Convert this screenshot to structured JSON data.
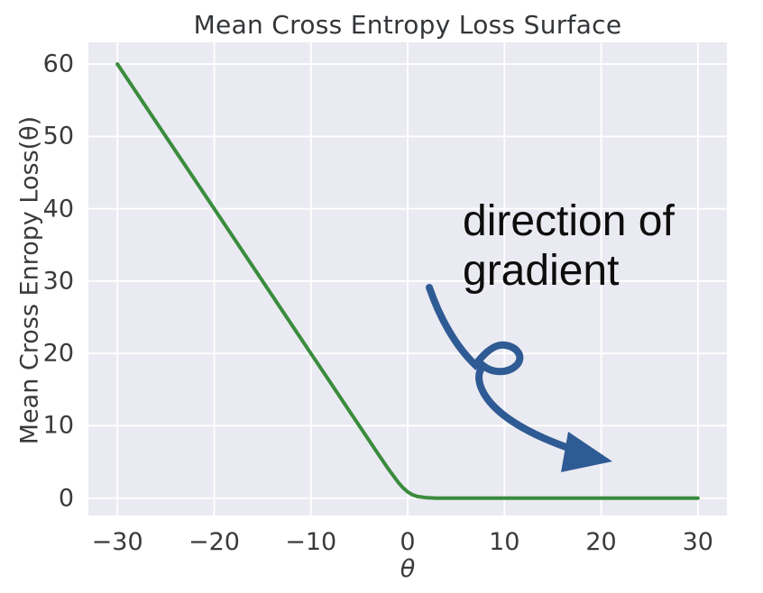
{
  "annotation": {
    "line1": "direction of",
    "line2": "gradient",
    "arrow_color": "#2f5b94",
    "text_color": "#0d0d0d"
  },
  "colors": {
    "axes_background": "#eaeaf2",
    "gridline": "#ffffff",
    "line": "#3a8c3d",
    "tick_text": "#3a3a3a",
    "title_text": "#333639"
  },
  "chart_data": {
    "type": "line",
    "title": "Mean Cross Entropy Loss Surface",
    "xlabel": "θ",
    "ylabel": "Mean Cross Enropy Loss(θ)",
    "xlim": [
      -33,
      33
    ],
    "ylim": [
      -2.4,
      63
    ],
    "grid": true,
    "legend": "none",
    "x_ticks": [
      -30,
      -20,
      -10,
      0,
      10,
      20,
      30
    ],
    "x_tick_labels": [
      "−30",
      "−20",
      "−10",
      "0",
      "10",
      "20",
      "30"
    ],
    "y_ticks": [
      0,
      10,
      20,
      30,
      40,
      50,
      60
    ],
    "y_tick_labels": [
      "0",
      "10",
      "20",
      "30",
      "40",
      "50",
      "60"
    ],
    "series": [
      {
        "name": "mean cross entropy loss",
        "color": "#3a8c3d",
        "x": [
          -30,
          -25,
          -20,
          -15,
          -10,
          -8,
          -6,
          -5,
          -4,
          -3,
          -2,
          -1,
          -0.5,
          0,
          0.5,
          1,
          2,
          3,
          4,
          5,
          7.5,
          10,
          15,
          20,
          25,
          30
        ],
        "y": [
          60.0,
          50.0,
          40.0,
          30.0,
          20.0,
          16.0,
          12.0,
          10.0,
          8.0,
          6.01,
          4.05,
          2.22,
          1.46,
          0.87,
          0.46,
          0.23,
          0.05,
          0.01,
          0.0,
          0.0,
          0.0,
          0.0,
          0.0,
          0.0,
          0.0,
          0.0
        ]
      }
    ],
    "annotations": [
      {
        "text": "direction of gradient",
        "type": "hand-drawn-curved-arrow-with-loop",
        "arrow_color": "#2f5b94"
      }
    ]
  }
}
